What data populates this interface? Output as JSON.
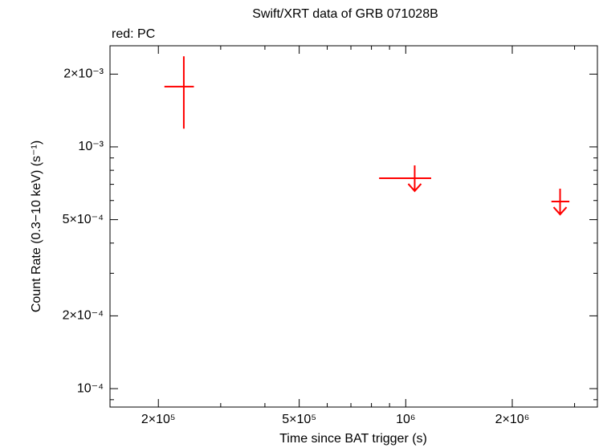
{
  "chart_data": {
    "type": "scatter",
    "title": "Swift/XRT data of GRB 071028B",
    "subtitle": "red: PC",
    "x_label": "Time since BAT trigger (s)",
    "y_label": "Count Rate (0.3−10 keV) (s⁻¹)",
    "xscale": "log",
    "yscale": "log",
    "xlim": [
      146000,
      3480000
    ],
    "ylim": [
      8.39e-05,
      0.00262
    ],
    "xticks": [
      {
        "value": 200000,
        "label": "2×10⁵"
      },
      {
        "value": 500000,
        "label": "5×10⁵"
      },
      {
        "value": 1000000,
        "label": "10⁶"
      },
      {
        "value": 2000000,
        "label": "2×10⁶"
      }
    ],
    "xminorticks": [
      300000,
      400000,
      600000,
      700000,
      800000,
      900000,
      3000000
    ],
    "yticks": [
      {
        "value": 0.0001,
        "label": "10⁻⁴"
      },
      {
        "value": 0.0002,
        "label": "2×10⁻⁴"
      },
      {
        "value": 0.0005,
        "label": "5×10⁻⁴"
      },
      {
        "value": 0.001,
        "label": "10⁻³"
      },
      {
        "value": 0.002,
        "label": "2×10⁻³"
      }
    ],
    "yminorticks": [
      9e-05,
      0.0003,
      0.0004,
      0.0006,
      0.0007,
      0.0008,
      0.0009
    ],
    "series": [
      {
        "color": "#ff0000",
        "points": [
          {
            "x": 236000,
            "x_low": 208000,
            "x_high": 252000,
            "y": 0.001775,
            "y_low": 0.00119,
            "y_high": 0.00237,
            "upper_limit": false
          },
          {
            "x": 1060000,
            "x_low": 841000,
            "x_high": 1180000,
            "y": 0.000742,
            "y_low": null,
            "y_high": null,
            "upper_limit": true
          },
          {
            "x": 2730000,
            "x_low": 2580000,
            "x_high": 2900000,
            "y": 0.000594,
            "y_low": null,
            "y_high": null,
            "upper_limit": true
          }
        ]
      }
    ]
  }
}
